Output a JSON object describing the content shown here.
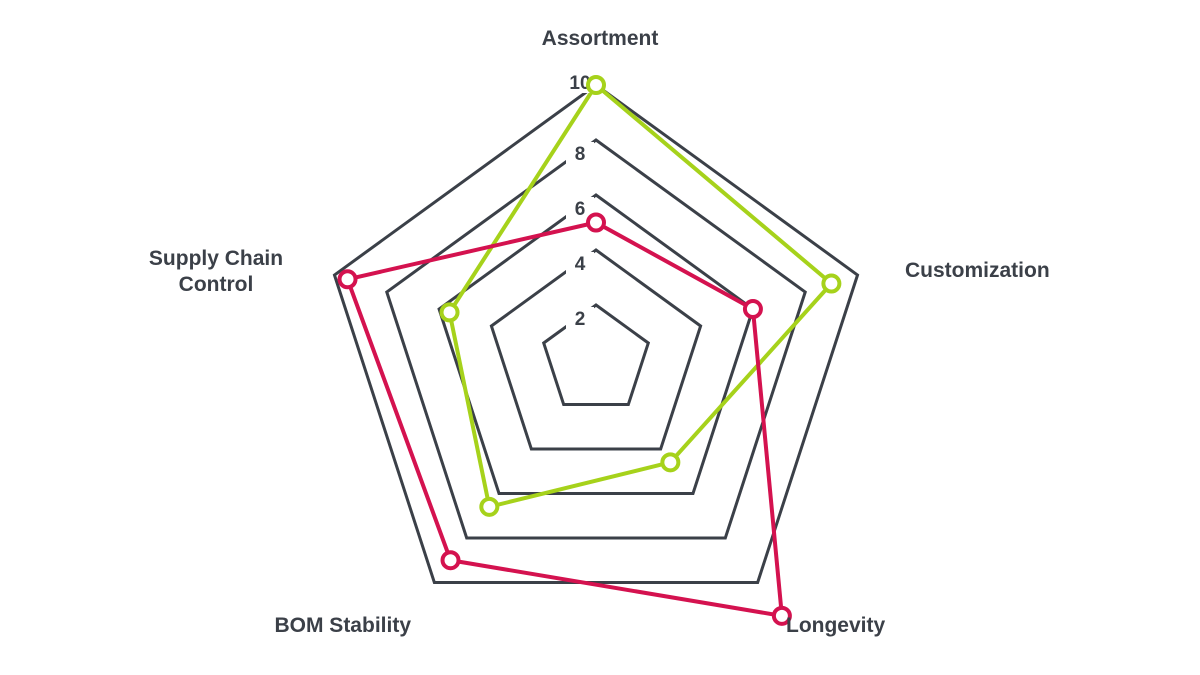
{
  "chart_data": {
    "type": "radar",
    "axes": [
      "Assortment",
      "Customization",
      "Longevity",
      "BOM Stability",
      "Supply Chain Control"
    ],
    "supply_chain_label_lines": [
      "Supply Chain",
      "Control"
    ],
    "scale": {
      "min": 0,
      "max": 10,
      "ticks": [
        2,
        4,
        6,
        8,
        10
      ],
      "rings": [
        2,
        4,
        6,
        8,
        10
      ]
    },
    "series": [
      {
        "color": "#a6d21b",
        "values": [
          10,
          9,
          4.6,
          6.6,
          5.6
        ]
      },
      {
        "color": "#d4124f",
        "values": [
          5,
          6,
          11.5,
          9,
          9.5
        ]
      }
    ],
    "grid_color": "#3b4048",
    "legend": "none"
  }
}
